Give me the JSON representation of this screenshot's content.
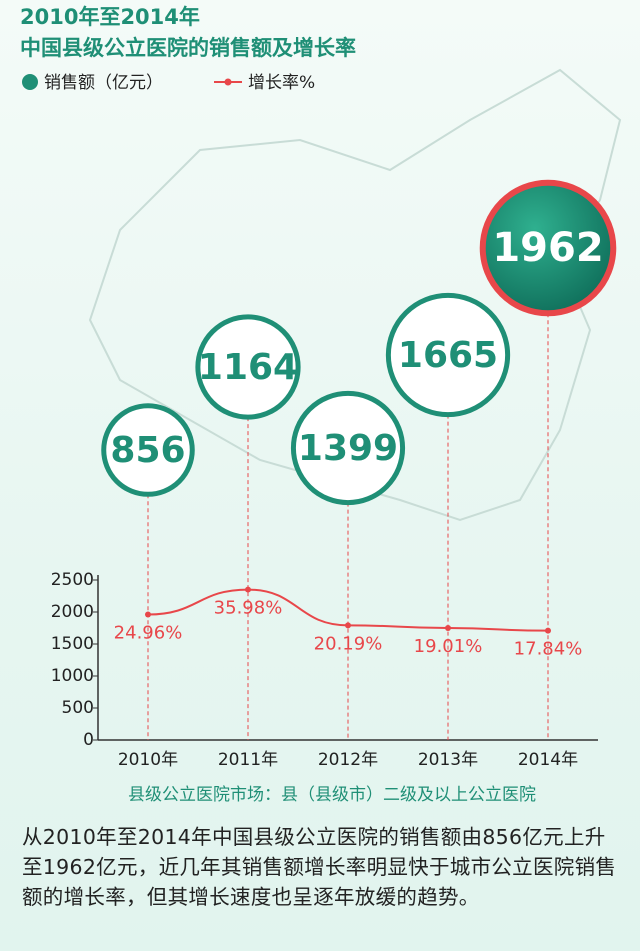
{
  "chart_data": {
    "type": "bubble-line",
    "title": "2010年至2014年",
    "subtitle": "中国县级公立医院的销售额及增长率",
    "categories": [
      "2010年",
      "2011年",
      "2012年",
      "2013年",
      "2014年"
    ],
    "series": [
      {
        "name": "销售额（亿元）",
        "color": "#1f8f76",
        "values": [
          856,
          1164,
          1399,
          1665,
          1962
        ]
      },
      {
        "name": "增长率%",
        "color": "#e8474a",
        "axis": "y2",
        "values": [
          24.96,
          35.98,
          20.19,
          19.01,
          17.84
        ],
        "value_labels": [
          "24.96%",
          "35.98%",
          "20.19%",
          "19.01%",
          "17.84%"
        ]
      }
    ],
    "ylim": [
      0,
      2500
    ],
    "yticks": [
      0,
      500,
      1000,
      1500,
      2000,
      2500
    ],
    "y2lim": [
      -30.4,
      40.2
    ],
    "note": "县级公立医院市场：县（县级市）二级及以上公立医院",
    "description": "从2010年至2014年中国县级公立医院的销售额由856亿元上升至1962亿元，近几年其销售额增长率明显快于城市公立医院销售额的增长率，但其增长速度也呈逐年放缓的趋势。"
  }
}
